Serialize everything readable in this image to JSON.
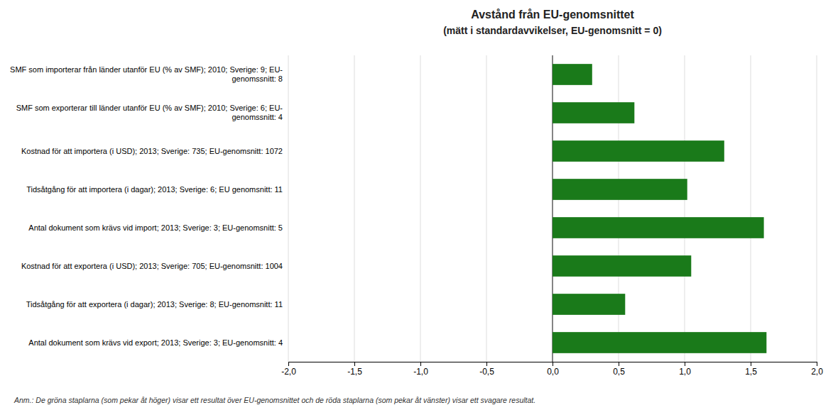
{
  "chart_data": {
    "type": "bar",
    "orientation": "horizontal",
    "title": "Avstånd från EU-genomsnittet",
    "subtitle": "(mätt i standardavvikelser, EU-genomsnitt = 0)",
    "categories": [
      "SMF som importerar från länder utanför EU (% av SMF); 2010; Sverige: 9; EU-\ngenomssnitt: 8",
      "SMF som exporterar till länder utanför EU (% av SMF); 2010; Sverige: 6; EU-\ngenomssnitt: 4",
      "Kostnad för att importera (i USD); 2013; Sverige: 735; EU-genomsnitt: 1072",
      "Tidsåtgång för att importera (i dagar); 2013; Sverige: 6; EU genomsnitt: 11",
      "Antal dokument som krävs vid import; 2013; Sverige: 3; EU-genomsnitt: 5",
      "Kostnad för att exportera (i USD); 2013; Sverige: 705; EU-genomsnitt: 1004",
      "Tidsåtgång för att exportera (i dagar); 2013; Sverige: 8; EU-genomsnitt: 11",
      "Antal dokument som krävs vid export; 2013; Sverige: 3; EU-genomsnitt: 4"
    ],
    "values": [
      0.3,
      0.62,
      1.3,
      1.02,
      1.6,
      1.05,
      0.55,
      1.62
    ],
    "color": "#1a7a1a",
    "xlim": [
      -2.0,
      2.0
    ],
    "xticks": [
      {
        "value": -2.0,
        "label": "-2,0"
      },
      {
        "value": -1.5,
        "label": "-1,5"
      },
      {
        "value": -1.0,
        "label": "-1,0"
      },
      {
        "value": -0.5,
        "label": "-0,5"
      },
      {
        "value": 0.0,
        "label": "0,0"
      },
      {
        "value": 0.5,
        "label": "0,5"
      },
      {
        "value": 1.0,
        "label": "1,0"
      },
      {
        "value": 1.5,
        "label": "1,5"
      },
      {
        "value": 2.0,
        "label": "2,0"
      }
    ],
    "grid": true,
    "annotations": [
      "Anm.: De gröna staplarna (som pekar åt höger) visar ett resultat över EU-genomsnittet och de röda staplarna (som pekar åt vänster) visar ett svagare resultat."
    ]
  }
}
